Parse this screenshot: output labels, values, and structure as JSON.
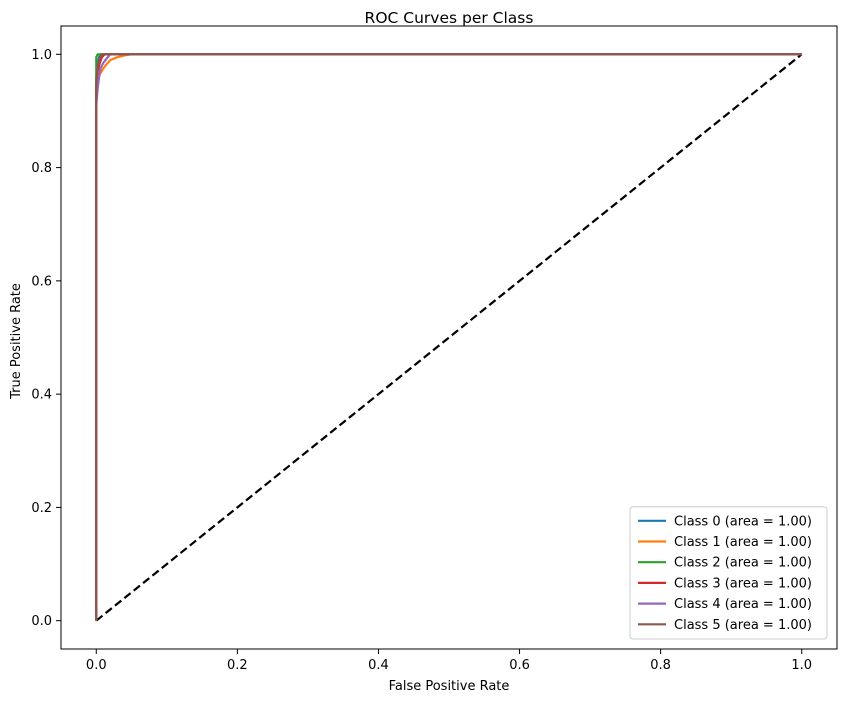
{
  "chart_data": {
    "type": "line",
    "title": "ROC Curves per Class",
    "xlabel": "False Positive Rate",
    "ylabel": "True Positive Rate",
    "xlim": [
      -0.05,
      1.05
    ],
    "ylim": [
      -0.05,
      1.05
    ],
    "xticks": [
      "0.0",
      "0.2",
      "0.4",
      "0.6",
      "0.8",
      "1.0"
    ],
    "yticks": [
      "0.0",
      "0.2",
      "0.4",
      "0.6",
      "0.8",
      "1.0"
    ],
    "xtick_values": [
      0,
      0.2,
      0.4,
      0.6,
      0.8,
      1.0
    ],
    "ytick_values": [
      0,
      0.2,
      0.4,
      0.6,
      0.8,
      1.0
    ],
    "grid": false,
    "legend_position": "lower-right",
    "series": [
      {
        "name": "Class 0 (area = 1.00)",
        "color": "#1f77b4",
        "x": [
          0,
          0,
          0.002,
          0.004,
          0.006,
          0.01,
          1.0
        ],
        "y": [
          0,
          0.96,
          0.985,
          0.995,
          1.0,
          1.0,
          1.0
        ]
      },
      {
        "name": "Class 1 (area = 1.00)",
        "color": "#ff7f0e",
        "x": [
          0,
          0,
          0.002,
          0.005,
          0.01,
          0.015,
          0.02,
          0.03,
          0.04,
          0.05,
          1.0
        ],
        "y": [
          0,
          0.93,
          0.95,
          0.965,
          0.975,
          0.983,
          0.99,
          0.995,
          0.998,
          1.0,
          1.0
        ]
      },
      {
        "name": "Class 2 (area = 1.00)",
        "color": "#2ca02c",
        "x": [
          0,
          0,
          0.002,
          1.0
        ],
        "y": [
          0,
          0.995,
          1.0,
          1.0
        ]
      },
      {
        "name": "Class 3 (area = 1.00)",
        "color": "#d62728",
        "x": [
          0,
          0,
          0.002,
          0.005,
          0.008,
          0.012,
          1.0
        ],
        "y": [
          0,
          0.94,
          0.97,
          0.985,
          0.995,
          1.0,
          1.0
        ]
      },
      {
        "name": "Class 4 (area = 1.00)",
        "color": "#9467bd",
        "x": [
          0,
          0,
          0.002,
          0.004,
          0.006,
          0.01,
          0.015,
          0.02,
          1.0
        ],
        "y": [
          0,
          0.91,
          0.94,
          0.96,
          0.975,
          0.985,
          0.993,
          1.0,
          1.0
        ]
      },
      {
        "name": "Class 5 (area = 1.00)",
        "color": "#8c564b",
        "x": [
          0,
          0,
          0.002,
          0.005,
          0.008,
          1.0
        ],
        "y": [
          0,
          0.95,
          0.98,
          0.993,
          1.0,
          1.0
        ]
      }
    ],
    "reference_line": {
      "x": [
        0,
        1
      ],
      "y": [
        0,
        1
      ],
      "color": "#000000",
      "style": "dashed"
    }
  }
}
